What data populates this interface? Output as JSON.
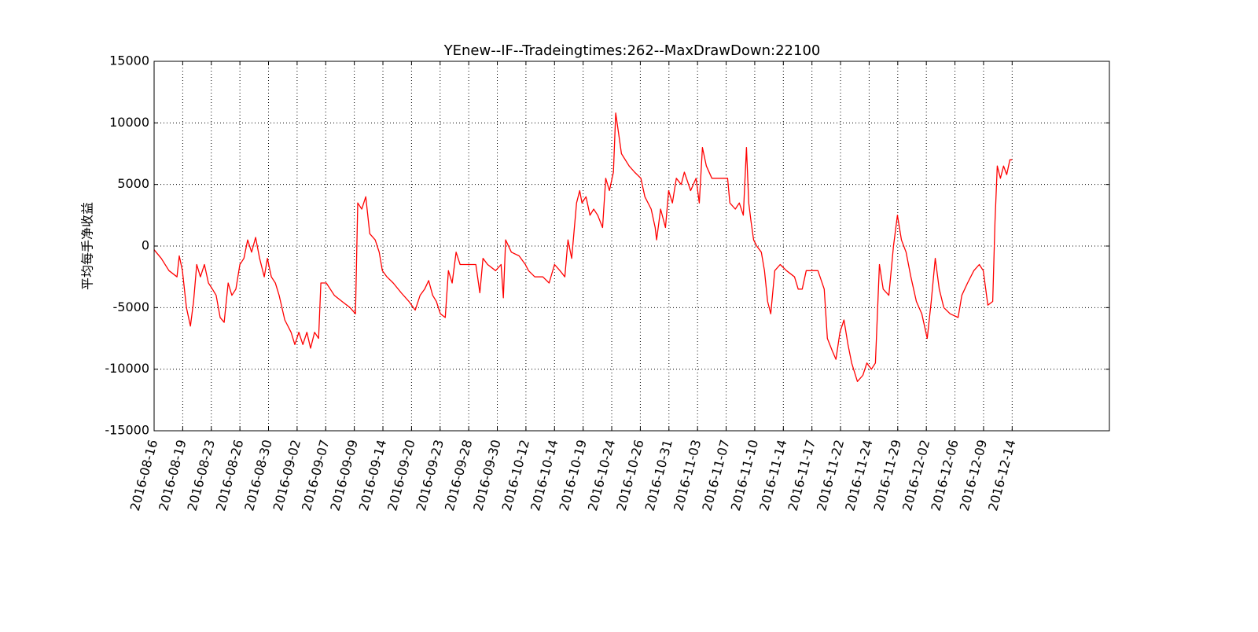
{
  "chart_data": {
    "type": "line",
    "title": "YEnew--IF--Tradeingtimes:262--MaxDrawDown:22100",
    "y_label": "平均每手净收益",
    "grid": true,
    "xlim": [
      0,
      3340
    ],
    "ylim": [
      -15000,
      15000
    ],
    "yticks": [
      -15000,
      -10000,
      -5000,
      0,
      5000,
      10000,
      15000
    ],
    "xticks": [
      {
        "value": 0,
        "label": "2016-08-16"
      },
      {
        "value": 100,
        "label": "2016-08-19"
      },
      {
        "value": 200,
        "label": "2016-08-23"
      },
      {
        "value": 300,
        "label": "2016-08-26"
      },
      {
        "value": 400,
        "label": "2016-08-30"
      },
      {
        "value": 500,
        "label": "2016-09-02"
      },
      {
        "value": 600,
        "label": "2016-09-07"
      },
      {
        "value": 700,
        "label": "2016-09-09"
      },
      {
        "value": 800,
        "label": "2016-09-14"
      },
      {
        "value": 900,
        "label": "2016-09-20"
      },
      {
        "value": 1000,
        "label": "2016-09-23"
      },
      {
        "value": 1100,
        "label": "2016-09-28"
      },
      {
        "value": 1200,
        "label": "2016-09-30"
      },
      {
        "value": 1300,
        "label": "2016-10-12"
      },
      {
        "value": 1400,
        "label": "2016-10-14"
      },
      {
        "value": 1500,
        "label": "2016-10-19"
      },
      {
        "value": 1600,
        "label": "2016-10-24"
      },
      {
        "value": 1700,
        "label": "2016-10-26"
      },
      {
        "value": 1800,
        "label": "2016-10-31"
      },
      {
        "value": 1900,
        "label": "2016-11-03"
      },
      {
        "value": 2000,
        "label": "2016-11-07"
      },
      {
        "value": 2100,
        "label": "2016-11-10"
      },
      {
        "value": 2200,
        "label": "2016-11-14"
      },
      {
        "value": 2300,
        "label": "2016-11-17"
      },
      {
        "value": 2400,
        "label": "2016-11-22"
      },
      {
        "value": 2500,
        "label": "2016-11-24"
      },
      {
        "value": 2600,
        "label": "2016-11-29"
      },
      {
        "value": 2700,
        "label": "2016-12-02"
      },
      {
        "value": 2800,
        "label": "2016-12-06"
      },
      {
        "value": 2900,
        "label": "2016-12-09"
      },
      {
        "value": 3000,
        "label": "2016-12-14"
      }
    ],
    "x": [
      0,
      25,
      52,
      80,
      88,
      99,
      113,
      127,
      138,
      149,
      162,
      176,
      190,
      204,
      217,
      231,
      245,
      259,
      272,
      286,
      300,
      314,
      327,
      341,
      355,
      369,
      385,
      396,
      410,
      424,
      437,
      457,
      479,
      492,
      506,
      520,
      534,
      547,
      561,
      575,
      583,
      602,
      630,
      657,
      685,
      704,
      712,
      726,
      740,
      754,
      773,
      787,
      798,
      814,
      836,
      864,
      891,
      913,
      930,
      946,
      960,
      974,
      987,
      1001,
      1018,
      1029,
      1042,
      1056,
      1070,
      1097,
      1125,
      1139,
      1150,
      1166,
      1194,
      1213,
      1221,
      1229,
      1249,
      1276,
      1298,
      1309,
      1331,
      1359,
      1381,
      1400,
      1419,
      1436,
      1447,
      1460,
      1477,
      1488,
      1496,
      1510,
      1524,
      1537,
      1551,
      1568,
      1579,
      1592,
      1606,
      1614,
      1625,
      1634,
      1661,
      1680,
      1702,
      1716,
      1738,
      1752,
      1757,
      1771,
      1788,
      1799,
      1812,
      1826,
      1843,
      1854,
      1876,
      1895,
      1906,
      1917,
      1931,
      1950,
      1977,
      2005,
      2013,
      2032,
      2046,
      2060,
      2071,
      2079,
      2087,
      2096,
      2107,
      2123,
      2134,
      2145,
      2156,
      2170,
      2189,
      2211,
      2239,
      2252,
      2266,
      2280,
      2294,
      2321,
      2343,
      2354,
      2371,
      2384,
      2398,
      2412,
      2426,
      2439,
      2459,
      2478,
      2492,
      2508,
      2522,
      2536,
      2549,
      2569,
      2585,
      2599,
      2613,
      2629,
      2646,
      2665,
      2684,
      2703,
      2717,
      2731,
      2745,
      2761,
      2783,
      2811,
      2824,
      2844,
      2866,
      2885,
      2899,
      2915,
      2932,
      2940,
      2948,
      2959,
      2970,
      2981,
      2992,
      3000
    ],
    "series": [
      {
        "color": "#ff0000",
        "values": [
          -300,
          -1000,
          -2000,
          -2500,
          -800,
          -2000,
          -5000,
          -6500,
          -4500,
          -1500,
          -2500,
          -1500,
          -3000,
          -3500,
          -4000,
          -5800,
          -6200,
          -3000,
          -4000,
          -3500,
          -1500,
          -1000,
          500,
          -500,
          700,
          -1000,
          -2500,
          -1000,
          -2500,
          -3000,
          -4000,
          -6000,
          -7000,
          -8000,
          -7000,
          -8000,
          -7000,
          -8300,
          -7000,
          -7500,
          -3000,
          -3000,
          -4000,
          -4500,
          -5000,
          -5500,
          3500,
          3000,
          4000,
          1000,
          500,
          -500,
          -2000,
          -2500,
          -3000,
          -3800,
          -4500,
          -5200,
          -4000,
          -3500,
          -2800,
          -4000,
          -4500,
          -5500,
          -5800,
          -2000,
          -3000,
          -500,
          -1500,
          -1500,
          -1500,
          -3800,
          -1000,
          -1500,
          -2000,
          -1500,
          -4200,
          500,
          -500,
          -800,
          -1500,
          -2000,
          -2500,
          -2500,
          -3000,
          -1500,
          -2000,
          -2500,
          500,
          -1000,
          3500,
          4500,
          3500,
          4000,
          2500,
          3000,
          2500,
          1500,
          5500,
          4500,
          6000,
          10800,
          9000,
          7500,
          6500,
          6000,
          5500,
          4000,
          3000,
          1500,
          500,
          3000,
          1500,
          4500,
          3500,
          5500,
          5000,
          6000,
          4500,
          5500,
          3500,
          8000,
          6500,
          5500,
          5500,
          5500,
          3500,
          3000,
          3500,
          2500,
          8000,
          3500,
          2000,
          500,
          0,
          -500,
          -2000,
          -4500,
          -5500,
          -2000,
          -1500,
          -2000,
          -2500,
          -3500,
          -3500,
          -2000,
          -2000,
          -2000,
          -3500,
          -7500,
          -8500,
          -9200,
          -7000,
          -6000,
          -8000,
          -9500,
          -11000,
          -10500,
          -9500,
          -10000,
          -9500,
          -1500,
          -3500,
          -4000,
          0,
          2500,
          500,
          -500,
          -2500,
          -4500,
          -5500,
          -7500,
          -4500,
          -1000,
          -3500,
          -5000,
          -5500,
          -5800,
          -4000,
          -3000,
          -2000,
          -1500,
          -2000,
          -4800,
          -4500,
          2000,
          6500,
          5500,
          6500,
          5800,
          7000,
          7000
        ]
      }
    ]
  }
}
